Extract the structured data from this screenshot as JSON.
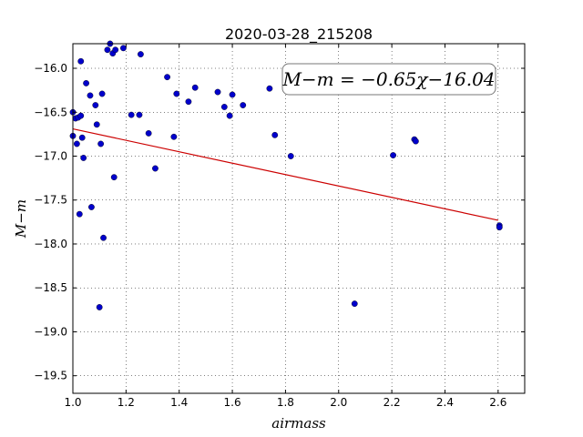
{
  "chart_data": {
    "type": "scatter",
    "title": "2020-03-28_215208",
    "xlabel": "airmass",
    "ylabel": "M−m",
    "xlim": [
      1.0,
      2.7
    ],
    "ylim": [
      -19.7,
      -15.72
    ],
    "xticks": [
      1.0,
      1.2,
      1.4,
      1.6,
      1.8,
      2.0,
      2.2,
      2.4,
      2.6
    ],
    "xtick_labels": [
      "1.0",
      "1.2",
      "1.4",
      "1.6",
      "1.8",
      "2.0",
      "2.2",
      "2.4",
      "2.6"
    ],
    "yticks": [
      -16.0,
      -16.5,
      -17.0,
      -17.5,
      -18.0,
      -18.5,
      -19.0,
      -19.5
    ],
    "ytick_labels": [
      "−16.0",
      "−16.5",
      "−17.0",
      "−17.5",
      "−18.0",
      "−18.5",
      "−19.0",
      "−19.5"
    ],
    "grid": true,
    "annotation": "M−m = −0.65χ−16.04",
    "fit_line": {
      "x": [
        1.0,
        2.6
      ],
      "y": [
        -16.69,
        -17.73
      ],
      "color": "#cc0000"
    },
    "point_color": "#0000cc",
    "x": [
      1.0,
      1.0,
      1.01,
      1.015,
      1.02,
      1.025,
      1.03,
      1.03,
      1.035,
      1.04,
      1.05,
      1.065,
      1.07,
      1.085,
      1.09,
      1.1,
      1.105,
      1.11,
      1.115,
      1.13,
      1.14,
      1.15,
      1.155,
      1.16,
      1.19,
      1.22,
      1.25,
      1.255,
      1.285,
      1.31,
      1.355,
      1.38,
      1.39,
      1.435,
      1.46,
      1.545,
      1.57,
      1.59,
      1.6,
      1.64,
      1.74,
      1.76,
      1.82,
      2.06,
      2.205,
      2.285,
      2.29,
      2.605,
      2.605
    ],
    "y": [
      -16.5,
      -16.77,
      -16.57,
      -16.86,
      -16.56,
      -17.66,
      -16.54,
      -15.92,
      -16.79,
      -17.02,
      -16.17,
      -16.31,
      -17.58,
      -16.42,
      -16.64,
      -18.72,
      -16.86,
      -16.29,
      -17.93,
      -15.79,
      -15.72,
      -15.83,
      -17.24,
      -15.79,
      -15.77,
      -16.53,
      -16.53,
      -15.84,
      -16.74,
      -17.14,
      -16.1,
      -16.78,
      -16.29,
      -16.38,
      -16.22,
      -16.27,
      -16.44,
      -16.54,
      -16.3,
      -16.42,
      -16.23,
      -16.76,
      -17.0,
      -18.68,
      -16.99,
      -16.81,
      -16.83,
      -17.79,
      -17.81
    ]
  }
}
